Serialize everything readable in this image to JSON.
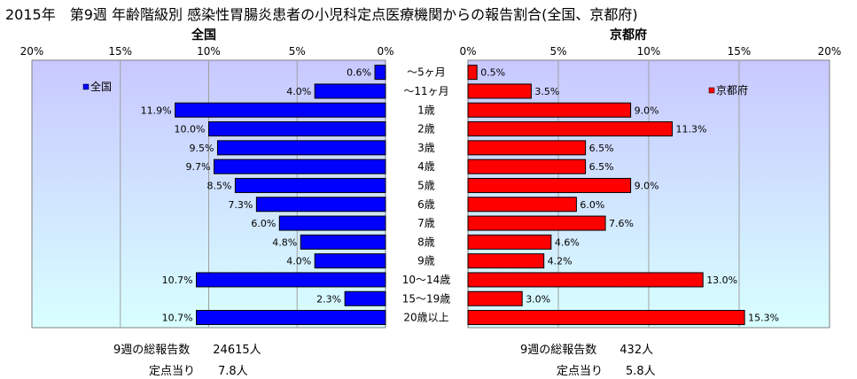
{
  "title": "2015年　第9週 年齢階級別 感染性胃腸炎患者の小児科定点医療機関からの報告割合(全国、京都府)",
  "chart_data": [
    {
      "type": "bar",
      "orientation": "horizontal",
      "title": "全国",
      "legend": "全国",
      "legend_position": "top-left",
      "color": "#0000ff",
      "xlim": [
        0,
        20
      ],
      "xdirection": "reversed",
      "xticks": [
        "20%",
        "15%",
        "10%",
        "5%",
        "0%"
      ],
      "grid": true,
      "categories": [
        "～5ヶ月",
        "～11ヶ月",
        "1歳",
        "2歳",
        "3歳",
        "4歳",
        "5歳",
        "6歳",
        "7歳",
        "8歳",
        "9歳",
        "10～14歳",
        "15～19歳",
        "20歳以上"
      ],
      "values": [
        0.6,
        4.0,
        11.9,
        10.0,
        9.5,
        9.7,
        8.5,
        7.3,
        6.0,
        4.8,
        4.0,
        10.7,
        2.3,
        10.7
      ],
      "labels": [
        "0.6%",
        "4.0%",
        "11.9%",
        "10.0%",
        "9.5%",
        "9.7%",
        "8.5%",
        "7.3%",
        "6.0%",
        "4.8%",
        "4.0%",
        "10.7%",
        "2.3%",
        "10.7%"
      ]
    },
    {
      "type": "bar",
      "orientation": "horizontal",
      "title": "京都府",
      "legend": "京都府",
      "legend_position": "top-right",
      "color": "#ff0000",
      "xlim": [
        0,
        20
      ],
      "xticks": [
        "0%",
        "5%",
        "10%",
        "15%",
        "20%"
      ],
      "grid": true,
      "categories": [
        "～5ヶ月",
        "～11ヶ月",
        "1歳",
        "2歳",
        "3歳",
        "4歳",
        "5歳",
        "6歳",
        "7歳",
        "8歳",
        "9歳",
        "10～14歳",
        "15～19歳",
        "20歳以上"
      ],
      "values": [
        0.5,
        3.5,
        9.0,
        11.3,
        6.5,
        6.5,
        9.0,
        6.0,
        7.6,
        4.6,
        4.2,
        13.0,
        3.0,
        15.3
      ],
      "labels": [
        "0.5%",
        "3.5%",
        "9.0%",
        "11.3%",
        "6.5%",
        "6.5%",
        "9.0%",
        "6.0%",
        "7.6%",
        "4.6%",
        "4.2%",
        "13.0%",
        "3.0%",
        "15.3%"
      ]
    }
  ],
  "summary": {
    "national_total": "9週の総報告数　　24615人",
    "national_per_site": "定点当り　　7.8人",
    "kyoto_total": "9週の総報告数　　432人",
    "kyoto_per_site": "定点当り　　5.8人"
  }
}
